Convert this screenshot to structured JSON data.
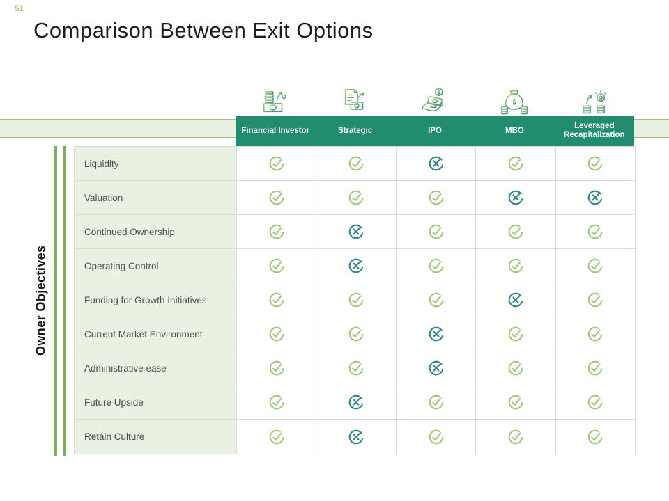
{
  "slide": {
    "page_number": "51",
    "title": "Comparison Between Exit Options"
  },
  "table": {
    "row_group_label": "Owner Objectives",
    "columns": [
      {
        "label": "Financial Investor",
        "icon": "coins-banknote-icon"
      },
      {
        "label": "Strategic",
        "icon": "document-money-icon"
      },
      {
        "label": "IPO",
        "icon": "hand-money-icon"
      },
      {
        "label": "MBO",
        "icon": "money-bag-icon"
      },
      {
        "label": "Leveraged Recapitalization",
        "icon": "coin-stacks-icon"
      }
    ],
    "rows": [
      {
        "label": "Liquidity",
        "values": [
          "check",
          "check",
          "cross",
          "check",
          "check"
        ]
      },
      {
        "label": "Valuation",
        "values": [
          "check",
          "check",
          "check",
          "cross",
          "cross"
        ]
      },
      {
        "label": "Continued Ownership",
        "values": [
          "check",
          "cross",
          "check",
          "check",
          "check"
        ]
      },
      {
        "label": "Operating Control",
        "values": [
          "check",
          "cross",
          "check",
          "check",
          "check"
        ]
      },
      {
        "label": "Funding for Growth Initiatives",
        "values": [
          "check",
          "check",
          "check",
          "cross",
          "check"
        ]
      },
      {
        "label": "Current Market Environment",
        "values": [
          "check",
          "check",
          "cross",
          "check",
          "check"
        ]
      },
      {
        "label": "Administrative ease",
        "values": [
          "check",
          "check",
          "cross",
          "check",
          "check"
        ]
      },
      {
        "label": "Future Upside",
        "values": [
          "check",
          "cross",
          "check",
          "check",
          "check"
        ]
      },
      {
        "label": "Retain Culture",
        "values": [
          "check",
          "cross",
          "check",
          "check",
          "check"
        ]
      }
    ],
    "cell_symbols": {
      "check": "check-circle",
      "cross": "cross-circle"
    }
  },
  "colors": {
    "header_bg": "#218d6e",
    "band_bg": "#e8f1de",
    "band_border": "#a3bf8a",
    "label_cell_bg": "#e9f1e2",
    "check": "#9fc878",
    "cross": "#2c8488",
    "accent_bar": "#7fae61",
    "page_number": "#9dc07f",
    "title_color": "#1d1d1d",
    "row_text": "#4b4b4b",
    "grid_line": "#d9dcd9",
    "icon_grad_light": "#a9cd7f",
    "icon_grad_dark": "#2f8a80"
  }
}
